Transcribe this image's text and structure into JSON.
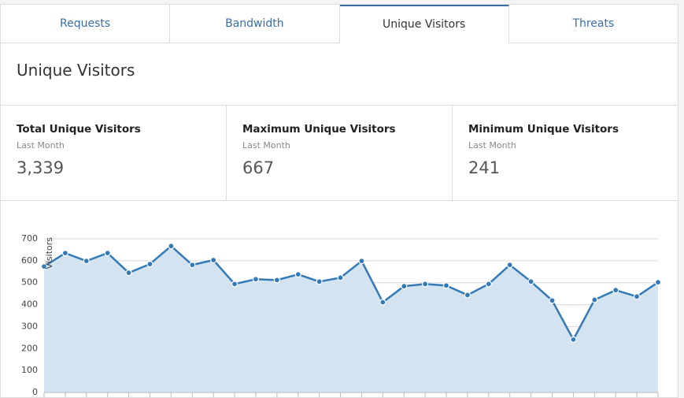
{
  "tabs": [
    "Requests",
    "Bandwidth",
    "Unique Visitors",
    "Threats"
  ],
  "active_tab": 2,
  "header": {
    "title": "Unique Visitors"
  },
  "stats": [
    {
      "title": "Total Unique Visitors",
      "period": "Last Month",
      "value": "3,339"
    },
    {
      "title": "Maximum Unique Visitors",
      "period": "Last Month",
      "value": "667"
    },
    {
      "title": "Minimum Unique Visitors",
      "period": "Last Month",
      "value": "241"
    }
  ],
  "chart_data": {
    "type": "area",
    "y_label": "Visitors",
    "categories": [
      null,
      null,
      null,
      null,
      null,
      null,
      null,
      null,
      null,
      null,
      null,
      null,
      null,
      null,
      null,
      null,
      null,
      null,
      null,
      null,
      null,
      null,
      null,
      null,
      null,
      null,
      null,
      null,
      null,
      null
    ],
    "series": [
      {
        "name": "Visitors",
        "color": "#337ab7",
        "fill": "#d4e3f0",
        "values": [
          574,
          635,
          599,
          635,
          545,
          585,
          667,
          581,
          603,
          494,
          516,
          512,
          538,
          505,
          523,
          599,
          411,
          484,
          494,
          487,
          444,
          494,
          581,
          505,
          419,
          241,
          422,
          466,
          437,
          502
        ]
      }
    ],
    "ylim": [
      0,
      700
    ],
    "yticks": [
      0,
      100,
      200,
      300,
      400,
      500,
      600,
      700
    ],
    "grid": true
  }
}
